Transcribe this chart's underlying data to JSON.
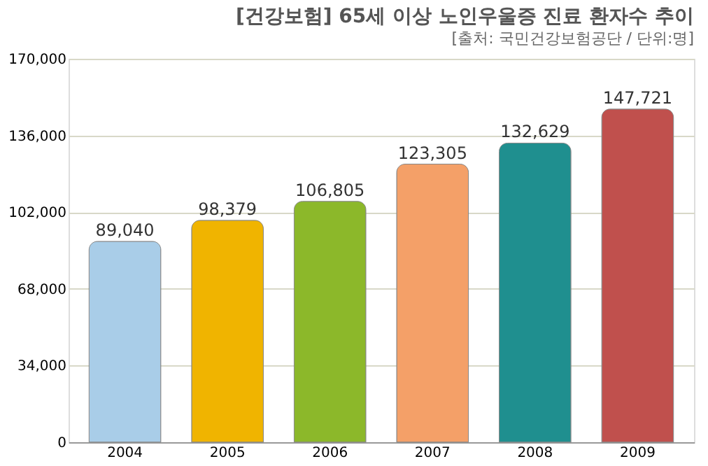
{
  "chart_data": {
    "type": "bar",
    "title": "[건강보험] 65세 이상 노인우울증 진료 환자수 추이",
    "subtitle": "[출처: 국민건강보험공단 / 단위:명]",
    "categories": [
      "2004",
      "2005",
      "2006",
      "2007",
      "2008",
      "2009"
    ],
    "values": [
      89040,
      98379,
      106805,
      123305,
      132629,
      147721
    ],
    "colors": [
      "#a9cde8",
      "#f0b400",
      "#8cb82a",
      "#f4a068",
      "#1f8f8f",
      "#c0504d"
    ],
    "ylim": [
      0,
      170000
    ],
    "yticks": [
      {
        "value": 0,
        "label": "0"
      },
      {
        "value": 34000,
        "label": "34,000"
      },
      {
        "value": 68000,
        "label": "68,000"
      },
      {
        "value": 102000,
        "label": "102,000"
      },
      {
        "value": 136000,
        "label": "136,000"
      },
      {
        "value": 170000,
        "label": "170,000"
      }
    ],
    "value_labels": [
      "89,040",
      "98,379",
      "106,805",
      "123,305",
      "132,629",
      "147,721"
    ],
    "grid": "y"
  }
}
